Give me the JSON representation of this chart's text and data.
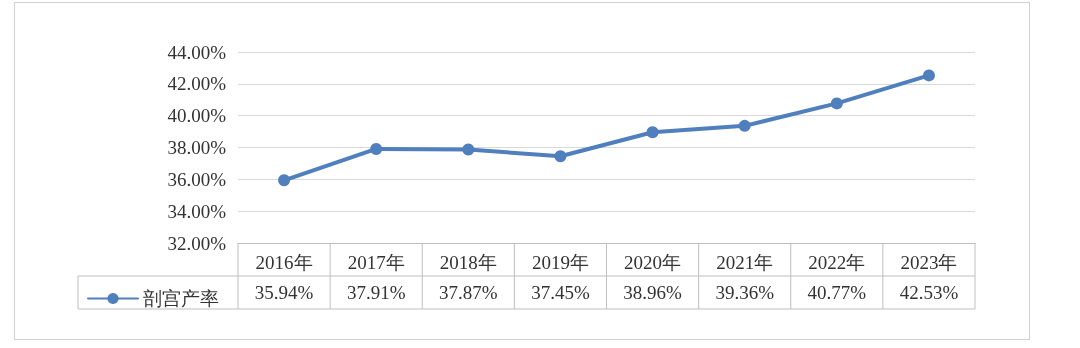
{
  "chart_data": {
    "type": "line",
    "categories": [
      "2016年",
      "2017年",
      "2018年",
      "2019年",
      "2020年",
      "2021年",
      "2022年",
      "2023年"
    ],
    "series": [
      {
        "name": "剖宫产率",
        "color": "#4f7fbc",
        "values": [
          35.94,
          37.91,
          37.87,
          37.45,
          38.96,
          39.36,
          40.77,
          42.53
        ],
        "value_labels": [
          "35.94%",
          "37.91%",
          "37.87%",
          "37.45%",
          "38.96%",
          "39.36%",
          "40.77%",
          "42.53%"
        ]
      }
    ],
    "ylim": [
      32,
      44
    ],
    "yticks": [
      {
        "value": 32,
        "label": "32.00%"
      },
      {
        "value": 34,
        "label": "34.00%"
      },
      {
        "value": 36,
        "label": "36.00%"
      },
      {
        "value": 38,
        "label": "38.00%"
      },
      {
        "value": 40,
        "label": "40.00%"
      },
      {
        "value": 42,
        "label": "42.00%"
      },
      {
        "value": 44,
        "label": "44.00%"
      }
    ],
    "grid": "y",
    "legend": "bottom left",
    "marker": "circle",
    "line_style": "solid"
  }
}
